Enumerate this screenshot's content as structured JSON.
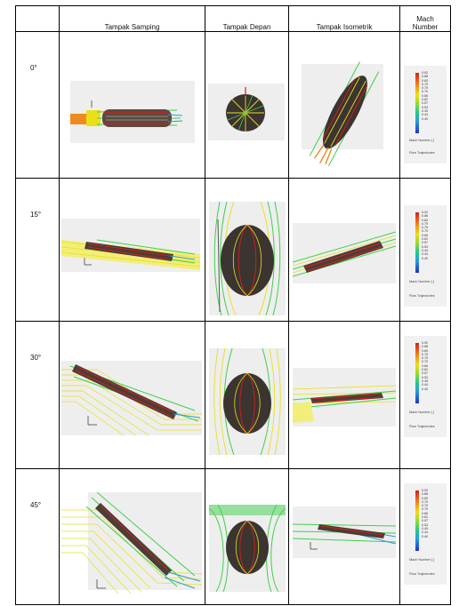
{
  "headers": {
    "col1": "",
    "col2": "Tampak Samping",
    "col3": "Tampak Depan",
    "col4": "Tampak Isometrik",
    "col5_line1": "Mach",
    "col5_line2": "Number"
  },
  "rows": [
    {
      "angle": "0°"
    },
    {
      "angle": "15°"
    },
    {
      "angle": "30°"
    },
    {
      "angle": "45°"
    }
  ],
  "legend": {
    "ticks": [
      "0.92",
      "0.88",
      "0.83",
      "0.79",
      "0.75",
      "0.70",
      "0.66",
      "0.62",
      "0.57",
      "0.53",
      "0.49",
      "0.44",
      "0.40"
    ],
    "title": "Mach Number [ ]",
    "caption": "Flow Trajectories"
  },
  "colors": {
    "flow_high": "#d21f1f",
    "flow_mid": "#e9e01c",
    "flow_green": "#3fcf4a",
    "flow_low": "#2a9bdc",
    "body_dark": "#5a4a3e",
    "panel_bg": "#eeeeee"
  }
}
